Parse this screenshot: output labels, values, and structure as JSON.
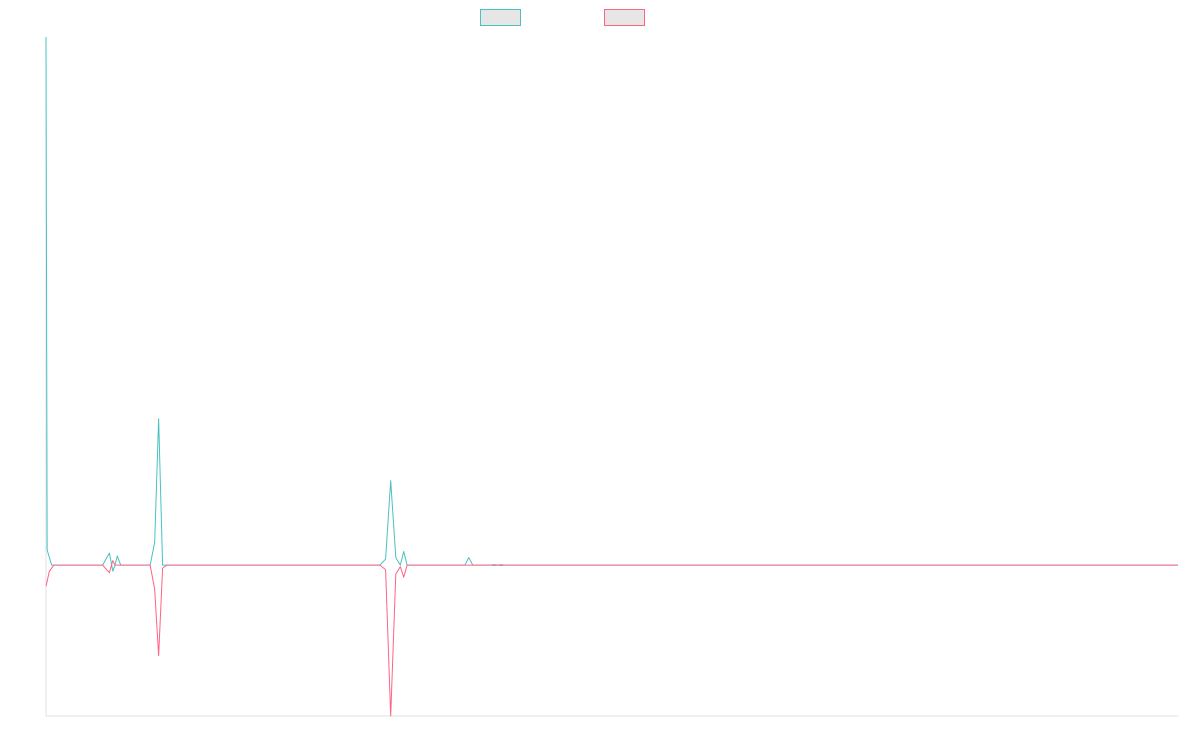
{
  "chart_data": {
    "type": "line",
    "title": "",
    "xlabel": "",
    "ylabel": "",
    "grid": false,
    "legend_placement": "top-center",
    "ylim": [
      -1.0,
      3.5
    ],
    "series": [
      {
        "color": "#4bc0c0",
        "points": [
          [
            0,
            3.5
          ],
          [
            0.1,
            0.1
          ],
          [
            0.5,
            0.0
          ],
          [
            5.0,
            0.0
          ],
          [
            5.6,
            0.08
          ],
          [
            5.9,
            -0.04
          ],
          [
            6.1,
            0.0
          ],
          [
            6.3,
            0.06
          ],
          [
            6.6,
            0.0
          ],
          [
            9.2,
            0.0
          ],
          [
            9.6,
            0.15
          ],
          [
            9.95,
            0.97
          ],
          [
            10.3,
            0.0
          ],
          [
            10.7,
            0.0
          ],
          [
            29.5,
            0.0
          ],
          [
            30.0,
            0.04
          ],
          [
            30.45,
            0.56
          ],
          [
            30.9,
            0.05
          ],
          [
            31.3,
            0.0
          ],
          [
            31.6,
            0.09
          ],
          [
            31.9,
            0.0
          ],
          [
            37.0,
            0.0
          ],
          [
            37.35,
            0.05
          ],
          [
            37.7,
            0.0
          ],
          [
            39.3,
            0.0
          ],
          [
            39.6,
            0.003
          ],
          [
            39.9,
            0.0
          ],
          [
            40.2,
            0.003
          ],
          [
            40.5,
            0.0
          ],
          [
            100,
            0.0
          ]
        ]
      },
      {
        "color": "#ff6384",
        "points": [
          [
            0,
            -0.14
          ],
          [
            0.3,
            -0.04
          ],
          [
            0.7,
            0.0
          ],
          [
            5.0,
            0.0
          ],
          [
            5.6,
            -0.05
          ],
          [
            5.9,
            0.03
          ],
          [
            6.1,
            0.0
          ],
          [
            6.6,
            0.0
          ],
          [
            9.2,
            0.0
          ],
          [
            9.6,
            -0.16
          ],
          [
            9.95,
            -0.6
          ],
          [
            10.3,
            -0.02
          ],
          [
            10.7,
            0.0
          ],
          [
            29.5,
            0.0
          ],
          [
            30.0,
            -0.03
          ],
          [
            30.45,
            -1.0
          ],
          [
            30.9,
            -0.06
          ],
          [
            31.3,
            -0.01
          ],
          [
            31.6,
            -0.08
          ],
          [
            31.9,
            0.0
          ],
          [
            37.0,
            0.0
          ],
          [
            37.35,
            0.0
          ],
          [
            37.7,
            0.0
          ],
          [
            39.3,
            0.0
          ],
          [
            39.6,
            -0.003
          ],
          [
            39.9,
            0.0
          ],
          [
            40.2,
            -0.003
          ],
          [
            40.5,
            0.0
          ],
          [
            100,
            0.0
          ]
        ]
      }
    ]
  }
}
